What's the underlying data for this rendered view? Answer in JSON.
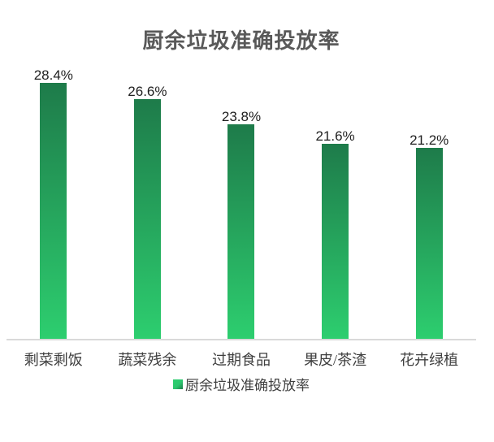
{
  "chart_data": {
    "type": "bar",
    "title": "厨余垃圾准确投放率",
    "categories": [
      "剩菜剩饭",
      "蔬菜残余",
      "过期食品",
      "果皮/茶渣",
      "花卉绿植"
    ],
    "values": [
      28.4,
      26.6,
      23.8,
      21.6,
      21.2
    ],
    "value_labels": [
      "28.4%",
      "26.6%",
      "23.8%",
      "21.6%",
      "21.2%"
    ],
    "series": [
      {
        "name": "厨余垃圾准确投放率",
        "values": [
          28.4,
          26.6,
          23.8,
          21.6,
          21.2
        ]
      }
    ],
    "legend_label": "厨余垃圾准确投放率",
    "legend_position": "bottom",
    "xlabel": "",
    "ylabel": "",
    "ylim": [
      0,
      30
    ],
    "grid": false,
    "y_axis_visible": false,
    "colors": {
      "bar_gradient_top": "#1e7b4a",
      "bar_gradient_bottom": "#2dce6f",
      "axis_line": "#d9d9d9",
      "title_text": "#595959",
      "value_label_text": "#1f1f1f",
      "category_text": "#3f3f3f"
    }
  }
}
